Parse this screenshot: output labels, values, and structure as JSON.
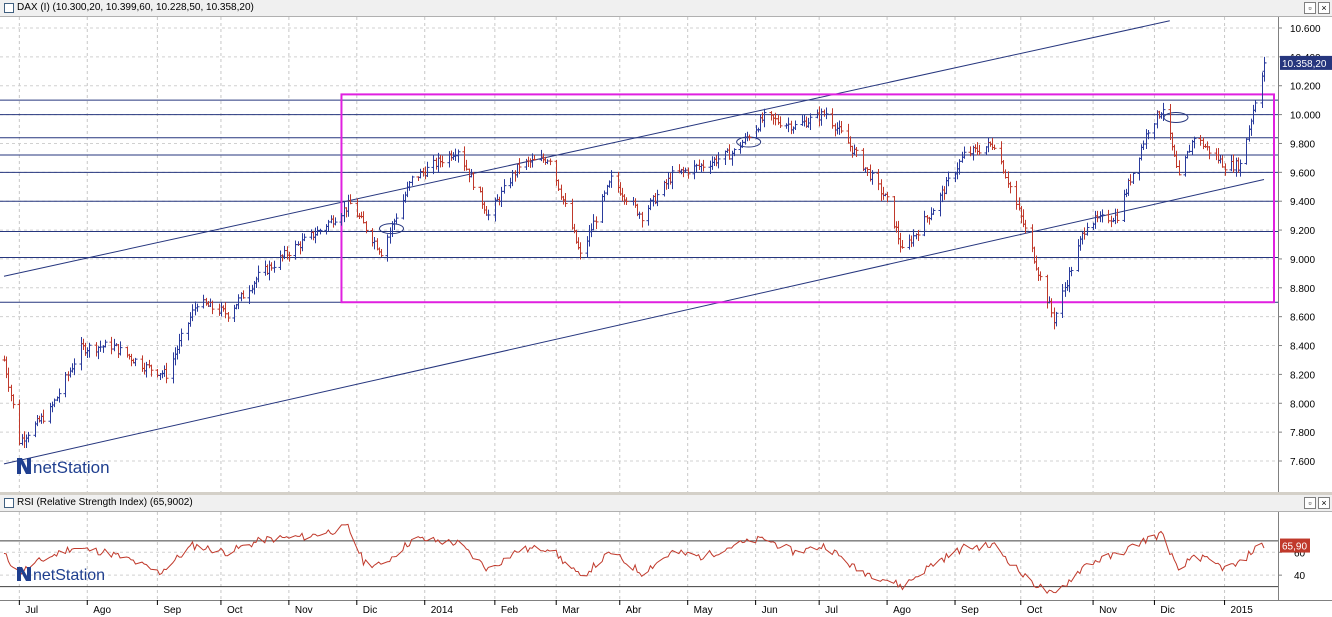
{
  "price_pane": {
    "title": "DAX (I) (10.300,20, 10.399,60, 10.228,50, 10.358,20)",
    "last_price_label": "10.358,20",
    "watermark": "netStation",
    "y_tick_labels": [
      "10.600",
      "10.400",
      "10.200",
      "10.000",
      "9.800",
      "9.600",
      "9.400",
      "9.200",
      "9.000",
      "8.800",
      "8.600",
      "8.400",
      "8.200",
      "8.000",
      "7.800",
      "7.600"
    ],
    "colors": {
      "up_bar": "#2a3b9c",
      "down_bar": "#c0392b",
      "trendline": "#26367e",
      "rectangle": "#e020e0",
      "last_price_bg": "#26367e",
      "hlines": "#26367e"
    }
  },
  "rsi_pane": {
    "title": "RSI (Relative Strength Index) (65,9002)",
    "last_value_label": "65,90",
    "watermark": "netStation",
    "y_tick_labels": [
      "60",
      "40"
    ],
    "colors": {
      "line": "#c0392b",
      "last_value_bg": "#c0392b"
    }
  },
  "x_axis": {
    "labels": [
      "Jul",
      "Ago",
      "Sep",
      "Oct",
      "Nov",
      "Dic",
      "2014",
      "Feb",
      "Mar",
      "Abr",
      "May",
      "Jun",
      "Jul",
      "Ago",
      "Sep",
      "Oct",
      "Nov",
      "Dic",
      "2015"
    ]
  },
  "chart_data": [
    {
      "type": "ohlc",
      "title": "DAX (I) (10.300,20, 10.399,60, 10.228,50, 10.358,20)",
      "ylim": [
        7450,
        10700
      ],
      "last": {
        "open": 10300.2,
        "high": 10399.6,
        "low": 10228.5,
        "close": 10358.2
      },
      "horizontal_levels": [
        10100,
        10000,
        9840,
        9720,
        9600,
        9400,
        9190,
        9010,
        8700
      ],
      "rectangle": {
        "x_start": "2013-11-25",
        "x_end": "2015-01-20",
        "y_low": 8700,
        "y_high": 10140
      },
      "trendlines": [
        {
          "from": {
            "x": "2013-06-24",
            "y": 8880
          },
          "to": {
            "x": "2014-12-08",
            "y": 10650
          }
        },
        {
          "from": {
            "x": "2013-06-24",
            "y": 7580
          },
          "to": {
            "x": "2015-01-20",
            "y": 9550
          }
        }
      ],
      "anchors": [
        {
          "x": "2013-06-24",
          "y": 8300
        },
        {
          "x": "2013-07-01",
          "y": 7740
        },
        {
          "x": "2013-07-15",
          "y": 7950
        },
        {
          "x": "2013-07-29",
          "y": 8380
        },
        {
          "x": "2013-08-12",
          "y": 8400
        },
        {
          "x": "2013-08-28",
          "y": 8250
        },
        {
          "x": "2013-09-06",
          "y": 8200
        },
        {
          "x": "2013-09-20",
          "y": 8700
        },
        {
          "x": "2013-10-04",
          "y": 8620
        },
        {
          "x": "2013-10-18",
          "y": 8880
        },
        {
          "x": "2013-11-01",
          "y": 9050
        },
        {
          "x": "2013-11-15",
          "y": 9200
        },
        {
          "x": "2013-11-29",
          "y": 9380
        },
        {
          "x": "2013-12-13",
          "y": 9050
        },
        {
          "x": "2013-12-27",
          "y": 9550
        },
        {
          "x": "2014-01-17",
          "y": 9760
        },
        {
          "x": "2014-01-31",
          "y": 9300
        },
        {
          "x": "2014-02-14",
          "y": 9650
        },
        {
          "x": "2014-02-28",
          "y": 9700
        },
        {
          "x": "2014-03-14",
          "y": 9020
        },
        {
          "x": "2014-03-28",
          "y": 9550
        },
        {
          "x": "2014-04-11",
          "y": 9300
        },
        {
          "x": "2014-04-25",
          "y": 9580
        },
        {
          "x": "2014-05-09",
          "y": 9650
        },
        {
          "x": "2014-05-23",
          "y": 9740
        },
        {
          "x": "2014-06-06",
          "y": 9980
        },
        {
          "x": "2014-06-20",
          "y": 9920
        },
        {
          "x": "2014-07-04",
          "y": 10010
        },
        {
          "x": "2014-07-18",
          "y": 9720
        },
        {
          "x": "2014-08-01",
          "y": 9400
        },
        {
          "x": "2014-08-08",
          "y": 9050
        },
        {
          "x": "2014-08-22",
          "y": 9350
        },
        {
          "x": "2014-09-05",
          "y": 9720
        },
        {
          "x": "2014-09-19",
          "y": 9800
        },
        {
          "x": "2014-10-03",
          "y": 9200
        },
        {
          "x": "2014-10-16",
          "y": 8580
        },
        {
          "x": "2014-10-31",
          "y": 9250
        },
        {
          "x": "2014-11-14",
          "y": 9300
        },
        {
          "x": "2014-11-28",
          "y": 9900
        },
        {
          "x": "2014-12-05",
          "y": 10050
        },
        {
          "x": "2014-12-12",
          "y": 9550
        },
        {
          "x": "2014-12-19",
          "y": 9850
        },
        {
          "x": "2015-01-02",
          "y": 9650
        },
        {
          "x": "2015-01-09",
          "y": 9650
        },
        {
          "x": "2015-01-16",
          "y": 10100
        },
        {
          "x": "2015-01-20",
          "y": 10358
        }
      ]
    },
    {
      "type": "line",
      "title": "RSI (Relative Strength Index) (65,9002)",
      "ylim": [
        20,
        90
      ],
      "levels": [
        70,
        30
      ],
      "last_value": 65.9,
      "series": [
        {
          "values": [
            {
              "x": "2013-06-24",
              "y": 58
            },
            {
              "x": "2013-07-01",
              "y": 42
            },
            {
              "x": "2013-07-10",
              "y": 52
            },
            {
              "x": "2013-07-25",
              "y": 64
            },
            {
              "x": "2013-08-10",
              "y": 60
            },
            {
              "x": "2013-08-22",
              "y": 52
            },
            {
              "x": "2013-09-03",
              "y": 42
            },
            {
              "x": "2013-09-18",
              "y": 66
            },
            {
              "x": "2013-10-04",
              "y": 60
            },
            {
              "x": "2013-10-20",
              "y": 71
            },
            {
              "x": "2013-11-10",
              "y": 74
            },
            {
              "x": "2013-11-28",
              "y": 82
            },
            {
              "x": "2013-12-05",
              "y": 52
            },
            {
              "x": "2013-12-13",
              "y": 48
            },
            {
              "x": "2013-12-28",
              "y": 72
            },
            {
              "x": "2014-01-17",
              "y": 68
            },
            {
              "x": "2014-01-31",
              "y": 45
            },
            {
              "x": "2014-02-14",
              "y": 62
            },
            {
              "x": "2014-02-28",
              "y": 64
            },
            {
              "x": "2014-03-14",
              "y": 38
            },
            {
              "x": "2014-03-28",
              "y": 60
            },
            {
              "x": "2014-04-11",
              "y": 42
            },
            {
              "x": "2014-04-25",
              "y": 60
            },
            {
              "x": "2014-05-09",
              "y": 56
            },
            {
              "x": "2014-05-23",
              "y": 66
            },
            {
              "x": "2014-06-06",
              "y": 72
            },
            {
              "x": "2014-06-20",
              "y": 60
            },
            {
              "x": "2014-07-04",
              "y": 66
            },
            {
              "x": "2014-07-18",
              "y": 45
            },
            {
              "x": "2014-08-01",
              "y": 36
            },
            {
              "x": "2014-08-08",
              "y": 30
            },
            {
              "x": "2014-08-22",
              "y": 50
            },
            {
              "x": "2014-09-05",
              "y": 64
            },
            {
              "x": "2014-09-19",
              "y": 66
            },
            {
              "x": "2014-10-03",
              "y": 38
            },
            {
              "x": "2014-10-16",
              "y": 22
            },
            {
              "x": "2014-10-31",
              "y": 50
            },
            {
              "x": "2014-11-14",
              "y": 58
            },
            {
              "x": "2014-11-28",
              "y": 72
            },
            {
              "x": "2014-12-05",
              "y": 76
            },
            {
              "x": "2014-12-12",
              "y": 42
            },
            {
              "x": "2014-12-19",
              "y": 58
            },
            {
              "x": "2015-01-02",
              "y": 46
            },
            {
              "x": "2015-01-09",
              "y": 50
            },
            {
              "x": "2015-01-16",
              "y": 64
            },
            {
              "x": "2015-01-20",
              "y": 65.9
            }
          ]
        }
      ]
    }
  ]
}
